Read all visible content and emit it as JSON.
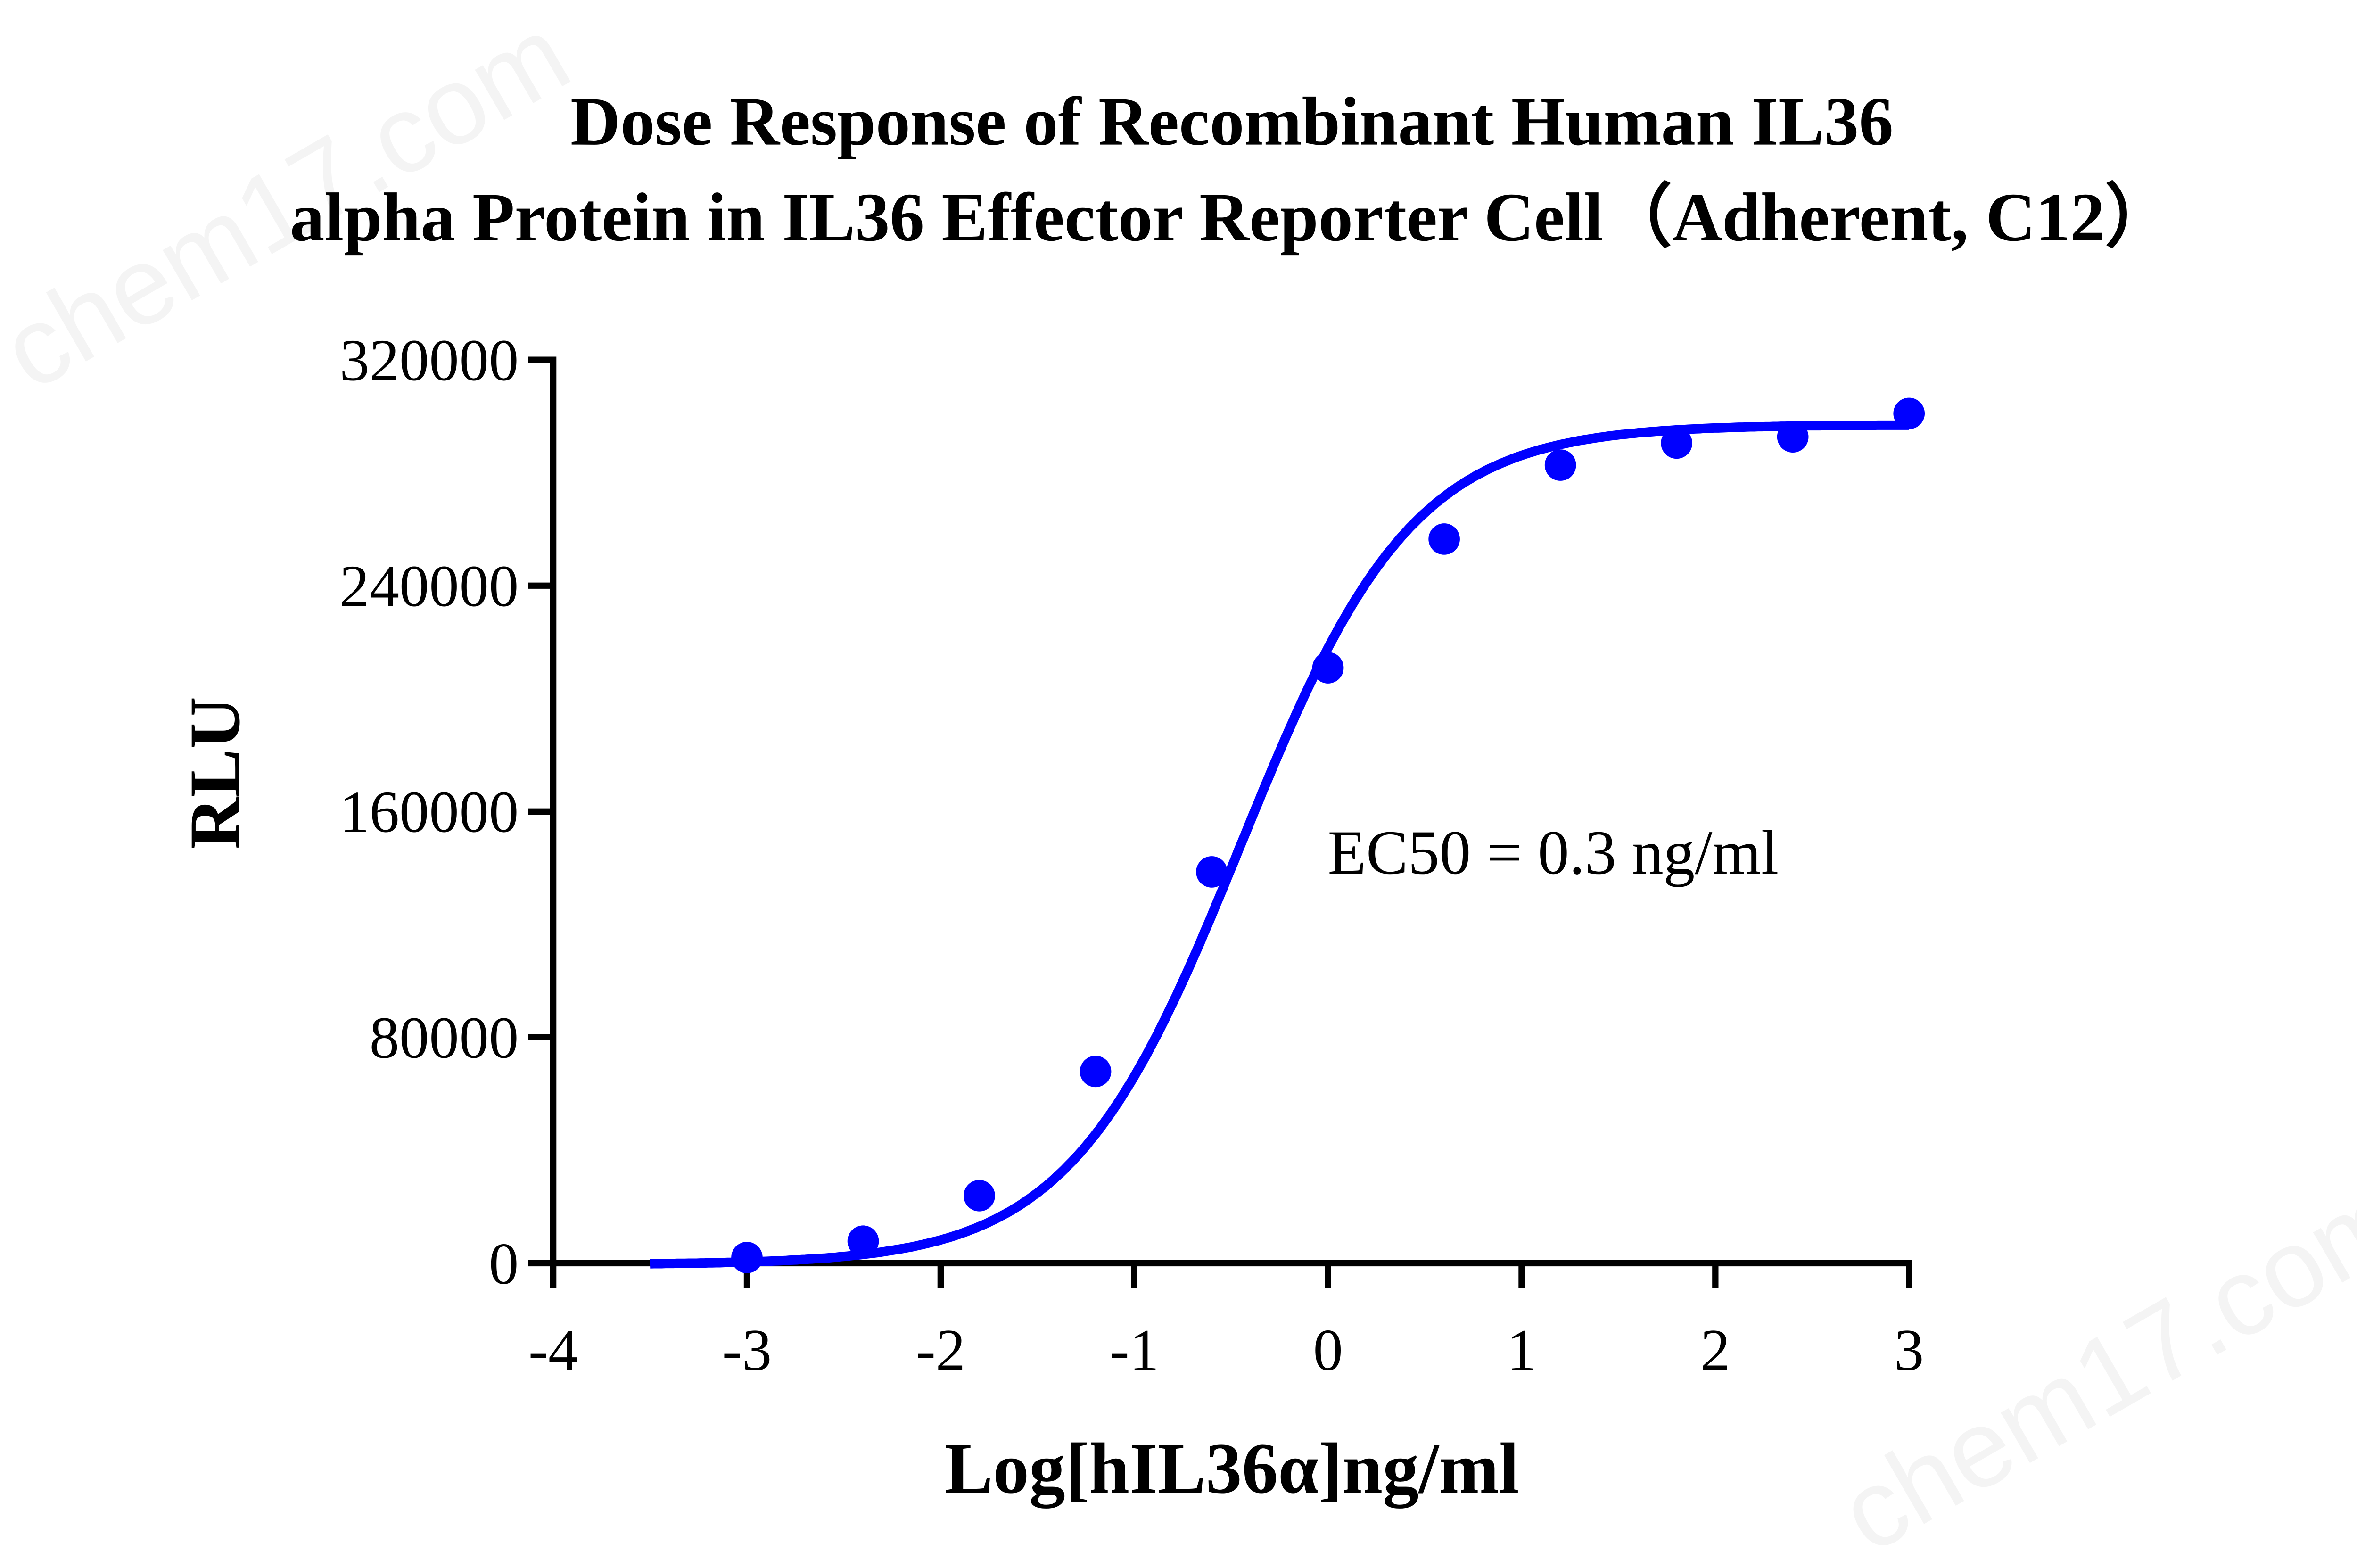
{
  "chart_data": {
    "type": "scatter",
    "title": [
      "Dose Response of Recombinant Human IL36",
      "alpha Protein in IL36 Effector Reporter Cell（Adherent, C12）"
    ],
    "xlabel": "Log[hIL36α]ng/ml",
    "ylabel": "RLU",
    "xlim": [
      -4,
      3
    ],
    "ylim": [
      0,
      320000
    ],
    "xticks": [
      -4,
      -3,
      -2,
      -1,
      0,
      1,
      2,
      3
    ],
    "yticks": [
      0,
      80000,
      160000,
      240000,
      320000
    ],
    "grid": false,
    "color": "#0000ff",
    "annotation": "EC50 = 0.3 ng/ml",
    "series": [
      {
        "x": [
          -3,
          -2.4,
          -1.8,
          -1.2,
          -0.6,
          0,
          0.6,
          1.2,
          1.8,
          2.4,
          3
        ],
        "y": [
          2000,
          7800,
          23900,
          67900,
          138600,
          210900,
          256500,
          282700,
          290500,
          292700,
          301000
        ],
        "fit": "sigmoidal dose-response curve"
      }
    ],
    "watermark": "chem17.com"
  }
}
